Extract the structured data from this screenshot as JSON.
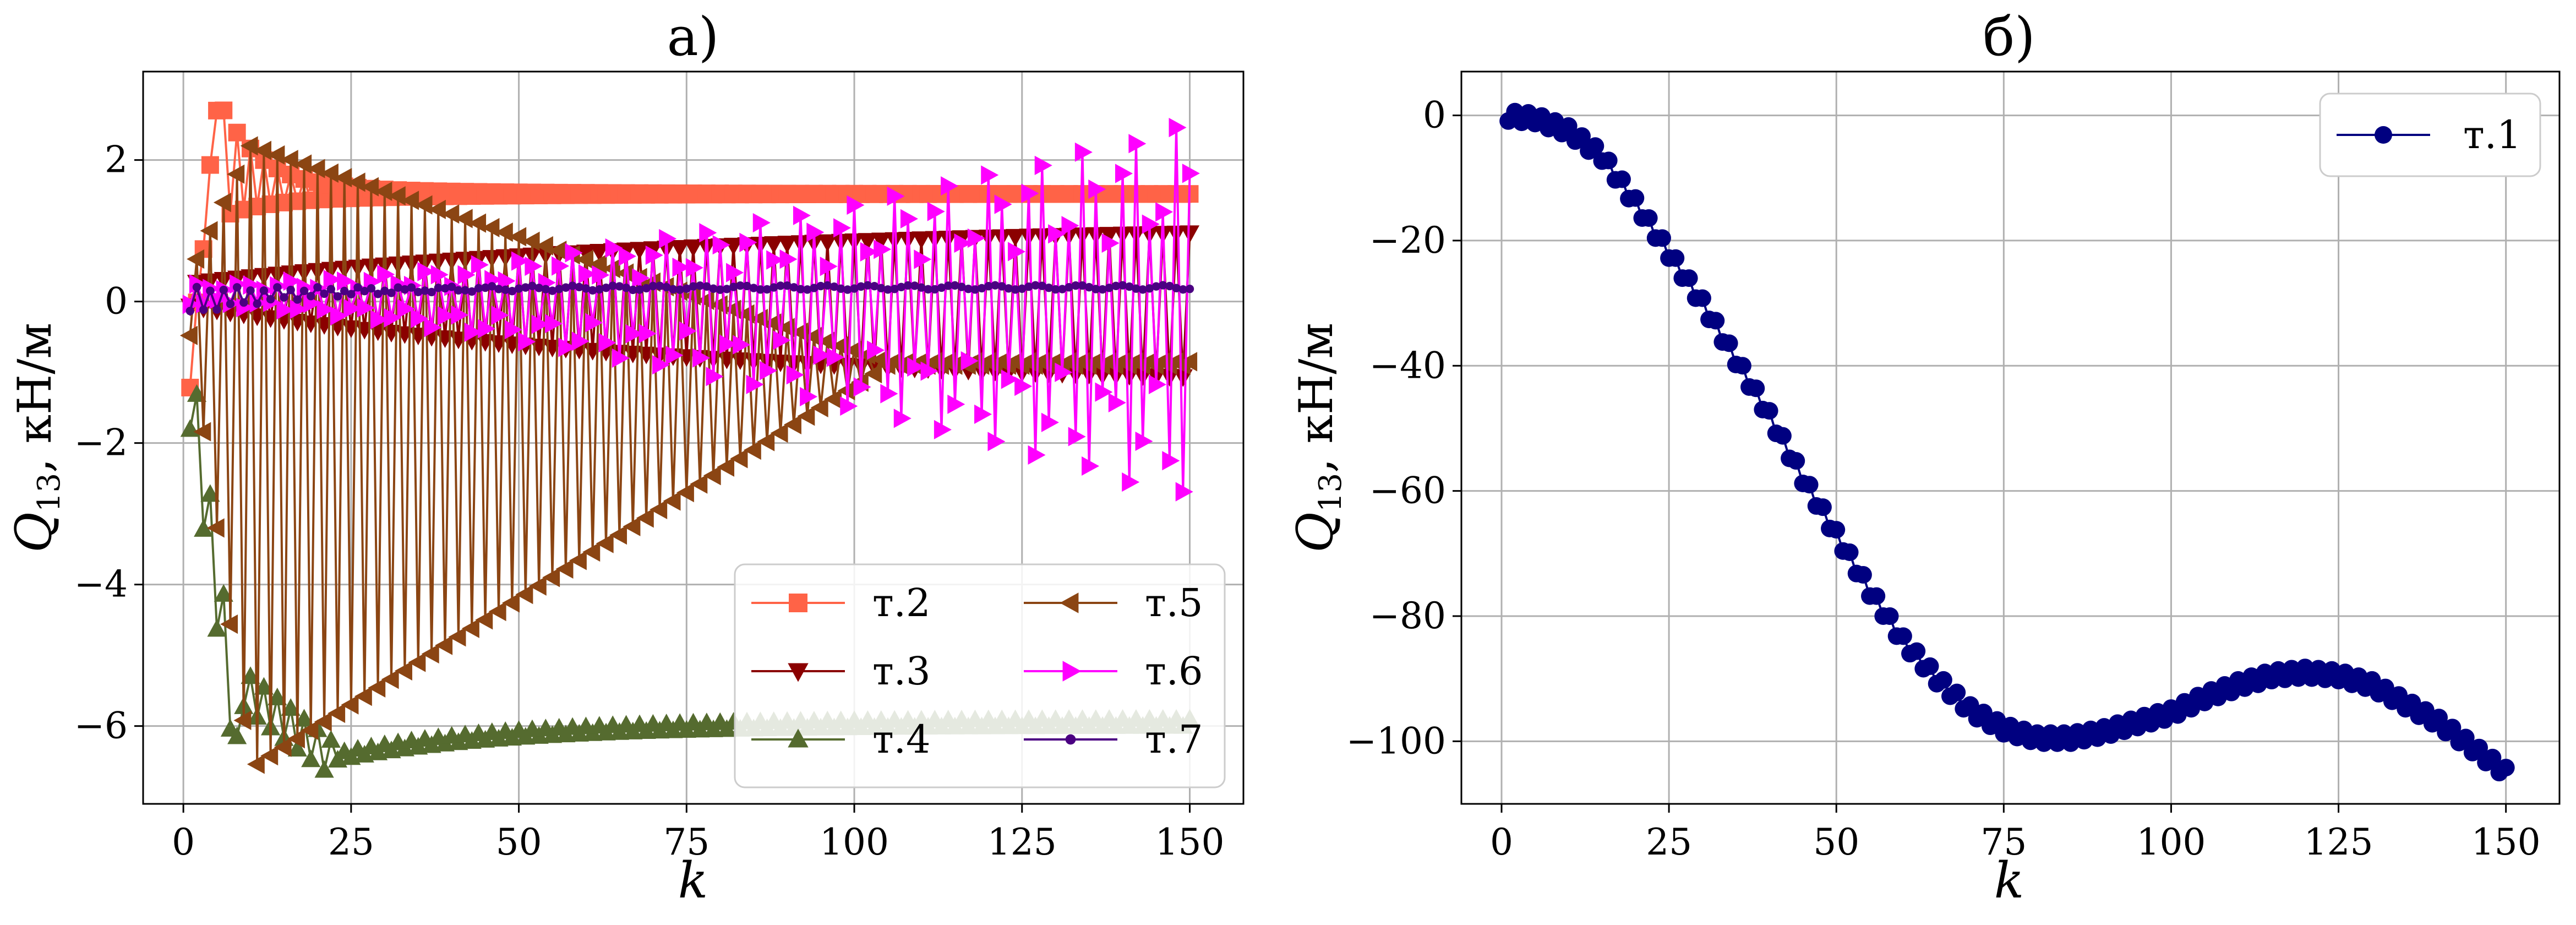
{
  "chart_data": [
    {
      "type": "line",
      "title": "а)",
      "xlabel": "k",
      "ylabel": "Q13, кН/м",
      "ylabel_main": "Q",
      "ylabel_sub": "13",
      "ylabel_unit": ", кН/м",
      "xlim": [
        -6,
        158
      ],
      "ylim": [
        -7.1,
        3.25
      ],
      "xticks": [
        0,
        25,
        50,
        75,
        100,
        125,
        150
      ],
      "yticks": [
        -6,
        -4,
        -2,
        0,
        2
      ],
      "grid": true,
      "legend_position": "lower-right",
      "legend_columns": 2,
      "series": [
        {
          "name": "т.2",
          "color": "#ff6347",
          "marker": "square",
          "generator": "settle",
          "params": {
            "start": -1.1,
            "peak": 2.8,
            "peakAt": 5,
            "final": 1.52,
            "tau": 6,
            "alt": 0.12,
            "altDecay": 30
          }
        },
        {
          "name": "т.3",
          "color": "#8b0000",
          "marker": "triangle-down",
          "generator": "alternating",
          "params": {
            "a0": 0.25,
            "a1": 1.1,
            "c0": -0.05,
            "c1": -0.15,
            "tau": 80
          }
        },
        {
          "name": "т.4",
          "color": "#556b2f",
          "marker": "triangle-up",
          "generator": "drop",
          "params": {
            "start": -0.5,
            "min": -6.45,
            "minAt": 22,
            "final": -5.95,
            "tau": 25
          }
        },
        {
          "name": "т.5",
          "color": "#8b4513",
          "marker": "triangle-left",
          "generator": "envelope",
          "params": {
            "upStart": 2.2,
            "upEnd": -0.85,
            "lowStart": -6.6,
            "lowEnd": -0.9,
            "openAt": 10,
            "shrinkEnd": 105
          }
        },
        {
          "name": "т.6",
          "color": "#ff00ff",
          "marker": "triangle-right",
          "generator": "growing",
          "params": {
            "base": 0.1,
            "ampStart": 0.15,
            "ampEnd": 2.7,
            "drift": -0.25
          }
        },
        {
          "name": "т.7",
          "color": "#4b0082",
          "marker": "dot",
          "generator": "flat",
          "params": {
            "start": 0.0,
            "final": 0.2,
            "tau": 20,
            "alt": 0.18
          }
        }
      ]
    },
    {
      "type": "line",
      "title": "б)",
      "xlabel": "k",
      "ylabel": "Q13, кН/м",
      "ylabel_main": "Q",
      "ylabel_sub": "13",
      "ylabel_unit": ", кН/м",
      "xlim": [
        -6,
        158
      ],
      "ylim": [
        -110,
        7
      ],
      "xticks": [
        0,
        25,
        50,
        75,
        100,
        125,
        150
      ],
      "yticks": [
        -100,
        -80,
        -60,
        -40,
        -20,
        0
      ],
      "grid": true,
      "legend_position": "top-right",
      "series": [
        {
          "name": "т.1",
          "color": "#000080",
          "marker": "circle",
          "anchors_x": [
            0,
            5,
            10,
            15,
            20,
            25,
            30,
            35,
            40,
            45,
            50,
            55,
            60,
            65,
            70,
            75,
            80,
            85,
            90,
            95,
            100,
            105,
            110,
            115,
            120,
            125,
            130,
            135,
            140,
            145,
            150
          ],
          "anchors_y": [
            0,
            -0.5,
            -2.5,
            -6.5,
            -14,
            -22,
            -30,
            -39,
            -48,
            -58,
            -67,
            -76,
            -84,
            -90,
            -95,
            -98,
            -99.5,
            -99.5,
            -98.5,
            -97,
            -95.5,
            -93,
            -91,
            -89.5,
            -89,
            -89.5,
            -91,
            -94,
            -97,
            -101,
            -105
          ]
        }
      ]
    }
  ]
}
